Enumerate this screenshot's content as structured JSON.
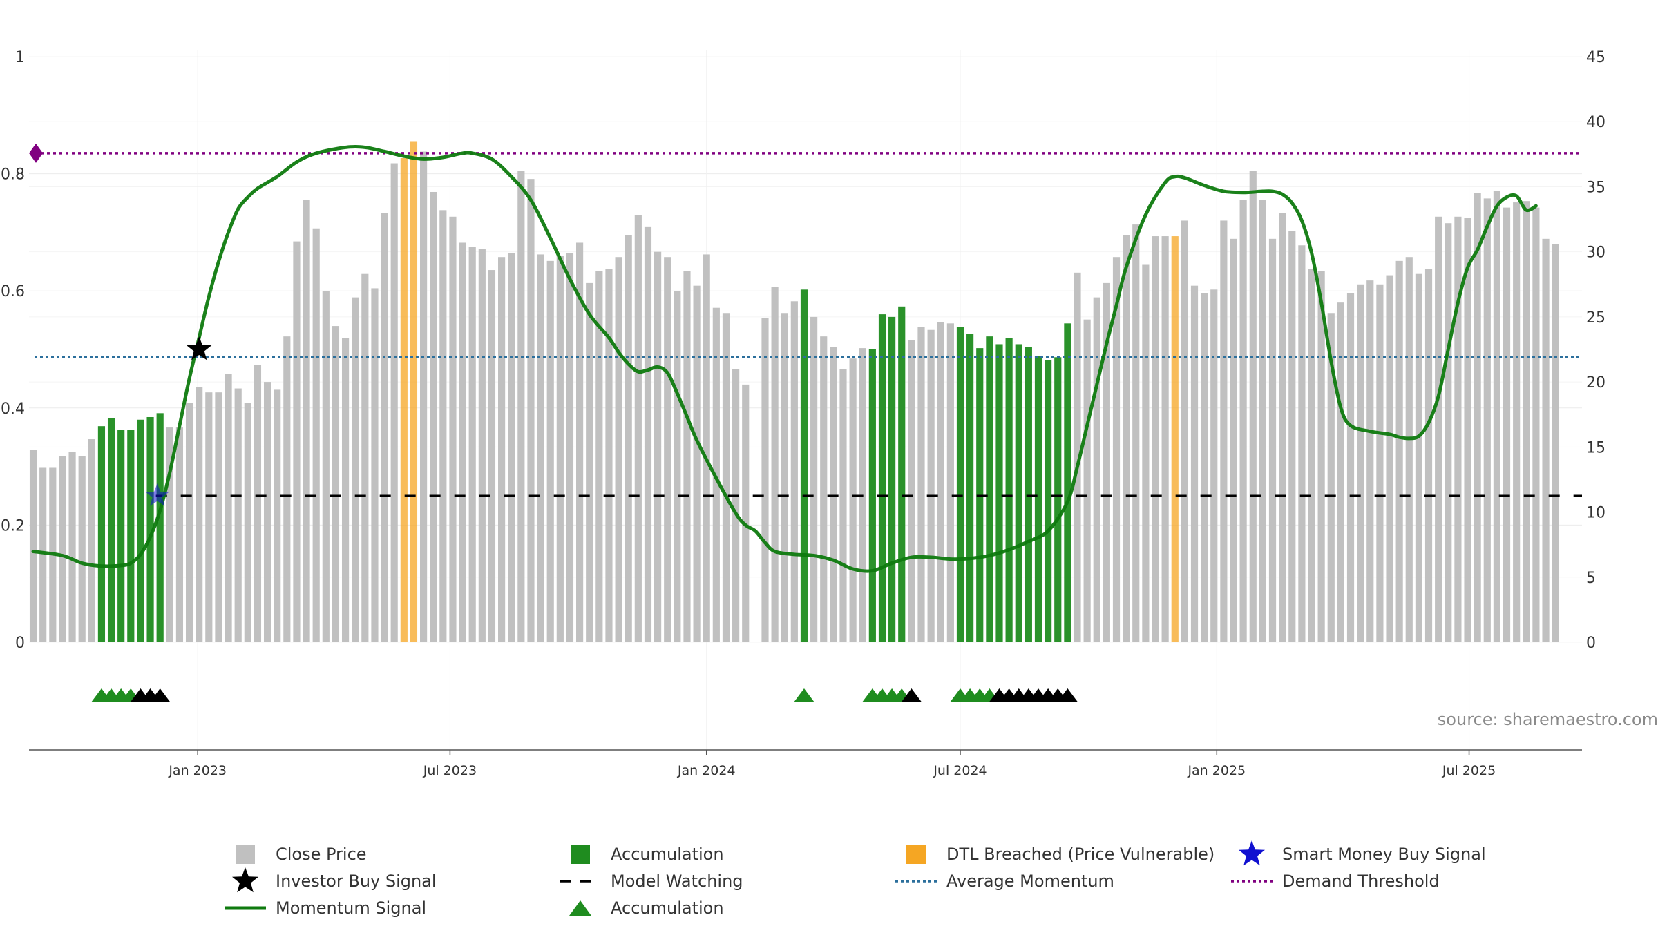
{
  "chart_data": {
    "type": "bar",
    "title": "",
    "source": "source: sharemaestro.com",
    "x_ticks": [
      "Jan 2023",
      "Jul 2023",
      "Jan 2024",
      "Jul 2024",
      "Jan 2025",
      "Jul 2025"
    ],
    "x_range": [
      "2022-09-02",
      "2025-09-20"
    ],
    "y_left": {
      "ticks": [
        "0",
        "0.2",
        "0.4",
        "0.6",
        "0.8",
        "1"
      ],
      "range": [
        0,
        1
      ]
    },
    "y_right": {
      "ticks": [
        "0",
        "5",
        "10",
        "15",
        "20",
        "25",
        "30",
        "35",
        "40",
        "45"
      ],
      "range": [
        0,
        45
      ]
    },
    "bar_interval_days": 7,
    "bars_start_date": "2022-09-02",
    "close_price": [
      14.8,
      13.4,
      13.4,
      14.3,
      14.6,
      14.3,
      15.6,
      16.6,
      17.2,
      16.3,
      16.3,
      17.1,
      17.3,
      17.6,
      16.5,
      16.5,
      18.4,
      19.6,
      19.2,
      19.2,
      20.6,
      19.5,
      18.4,
      21.3,
      20.0,
      19.4,
      23.5,
      30.8,
      34.0,
      31.8,
      27.0,
      24.3,
      23.4,
      26.5,
      28.3,
      27.2,
      33.0,
      36.8,
      37.2,
      38.5,
      37.7,
      34.6,
      33.2,
      32.7,
      30.7,
      30.4,
      30.2,
      28.6,
      29.6,
      29.9,
      36.2,
      35.6,
      29.8,
      29.3,
      29.7,
      29.9,
      30.7,
      27.6,
      28.5,
      28.7,
      29.6,
      31.3,
      32.8,
      31.9,
      30.0,
      29.6,
      27.0,
      28.5,
      27.4,
      29.8,
      25.7,
      25.3,
      21.0,
      19.8,
      0,
      24.9,
      27.3,
      25.3,
      26.2,
      27.1,
      25.0,
      23.5,
      22.7,
      21.0,
      21.8,
      22.6,
      22.5,
      25.2,
      25.0,
      25.8,
      23.2,
      24.2,
      24.0,
      24.6,
      24.5,
      24.2,
      23.7,
      22.6,
      23.5,
      22.9,
      23.4,
      22.9,
      22.7,
      22.0,
      21.7,
      21.9,
      24.5,
      28.4,
      24.8,
      26.5,
      27.6,
      29.6,
      31.3,
      32.1,
      29.0,
      31.2,
      31.2,
      31.2,
      32.4,
      27.4,
      26.8,
      27.1,
      32.4,
      31.0,
      34.0,
      36.2,
      34.0,
      31.0,
      33.0,
      31.6,
      30.5,
      28.7,
      28.5,
      25.3,
      26.1,
      26.8,
      27.5,
      27.8,
      27.5,
      28.2,
      29.3,
      29.6,
      28.3,
      28.7,
      32.7,
      32.2,
      32.7,
      32.6,
      34.5,
      34.1,
      34.7,
      33.4,
      33.8,
      33.9,
      33.4,
      31.0,
      30.6
    ],
    "accumulation_ranges": [
      [
        7,
        13
      ],
      [
        79,
        79
      ],
      [
        86,
        89
      ],
      [
        95,
        106
      ]
    ],
    "dtl_breached_ranges": [
      [
        38,
        39
      ],
      [
        117,
        117
      ]
    ],
    "momentum_signal": [
      [
        0,
        0.155
      ],
      [
        3,
        0.148
      ],
      [
        5,
        0.135
      ],
      [
        7,
        0.13
      ],
      [
        9,
        0.131
      ],
      [
        10,
        0.135
      ],
      [
        11,
        0.15
      ],
      [
        12,
        0.18
      ],
      [
        13,
        0.225
      ],
      [
        14,
        0.29
      ],
      [
        15,
        0.37
      ],
      [
        16,
        0.45
      ],
      [
        17,
        0.52
      ],
      [
        18,
        0.59
      ],
      [
        19,
        0.65
      ],
      [
        20,
        0.7
      ],
      [
        21,
        0.74
      ],
      [
        22,
        0.76
      ],
      [
        23,
        0.775
      ],
      [
        25,
        0.795
      ],
      [
        27,
        0.82
      ],
      [
        29,
        0.835
      ],
      [
        32,
        0.845
      ],
      [
        34,
        0.845
      ],
      [
        36,
        0.838
      ],
      [
        38,
        0.83
      ],
      [
        40,
        0.825
      ],
      [
        42,
        0.828
      ],
      [
        44,
        0.835
      ],
      [
        45,
        0.835
      ],
      [
        47,
        0.825
      ],
      [
        49,
        0.795
      ],
      [
        51,
        0.755
      ],
      [
        53,
        0.69
      ],
      [
        55,
        0.62
      ],
      [
        57,
        0.56
      ],
      [
        59,
        0.52
      ],
      [
        60,
        0.495
      ],
      [
        61,
        0.475
      ],
      [
        62,
        0.462
      ],
      [
        63,
        0.465
      ],
      [
        64,
        0.47
      ],
      [
        65,
        0.46
      ],
      [
        66,
        0.425
      ],
      [
        67,
        0.385
      ],
      [
        68,
        0.345
      ],
      [
        70,
        0.28
      ],
      [
        72,
        0.22
      ],
      [
        73,
        0.2
      ],
      [
        74,
        0.19
      ],
      [
        75,
        0.17
      ],
      [
        76,
        0.155
      ],
      [
        78,
        0.15
      ],
      [
        80,
        0.148
      ],
      [
        82,
        0.14
      ],
      [
        84,
        0.125
      ],
      [
        86,
        0.122
      ],
      [
        88,
        0.135
      ],
      [
        90,
        0.145
      ],
      [
        92,
        0.145
      ],
      [
        94,
        0.142
      ],
      [
        96,
        0.143
      ],
      [
        98,
        0.148
      ],
      [
        100,
        0.158
      ],
      [
        102,
        0.172
      ],
      [
        104,
        0.19
      ],
      [
        106,
        0.24
      ],
      [
        107,
        0.3
      ],
      [
        108,
        0.37
      ],
      [
        109,
        0.44
      ],
      [
        110,
        0.51
      ],
      [
        111,
        0.575
      ],
      [
        112,
        0.64
      ],
      [
        114,
        0.73
      ],
      [
        116,
        0.785
      ],
      [
        117,
        0.795
      ],
      [
        118,
        0.793
      ],
      [
        120,
        0.78
      ],
      [
        122,
        0.77
      ],
      [
        124,
        0.768
      ],
      [
        126,
        0.77
      ],
      [
        127,
        0.77
      ],
      [
        128,
        0.765
      ],
      [
        129,
        0.75
      ],
      [
        130,
        0.72
      ],
      [
        131,
        0.665
      ],
      [
        132,
        0.58
      ],
      [
        133,
        0.48
      ],
      [
        134,
        0.4
      ],
      [
        135,
        0.37
      ],
      [
        137,
        0.36
      ],
      [
        139,
        0.355
      ],
      [
        140,
        0.35
      ],
      [
        141,
        0.348
      ],
      [
        142,
        0.352
      ],
      [
        143,
        0.375
      ],
      [
        144,
        0.42
      ],
      [
        145,
        0.5
      ],
      [
        146,
        0.58
      ],
      [
        147,
        0.64
      ],
      [
        148,
        0.67
      ],
      [
        149,
        0.71
      ],
      [
        150,
        0.745
      ],
      [
        151,
        0.76
      ],
      [
        152,
        0.762
      ],
      [
        153,
        0.738
      ],
      [
        154,
        0.745
      ]
    ],
    "model_watching_start_index": 13,
    "model_watching_level": 0.25,
    "average_momentum": 0.487,
    "demand_threshold": 0.835,
    "investor_buy_signal": [
      {
        "index": 17,
        "value": 0.5
      }
    ],
    "smart_money_buy_signal": [
      {
        "index": 13,
        "value": 0.25
      }
    ],
    "accumulation_triangles_green": [
      7,
      8,
      9,
      10,
      79,
      86,
      87,
      88,
      89,
      95,
      96,
      97,
      98
    ],
    "accumulation_triangles_black": [
      11,
      12,
      13,
      90,
      99,
      100,
      101,
      102,
      103,
      104,
      105,
      106
    ],
    "legend": [
      {
        "label": "Close Price",
        "symbol": "square",
        "color": "#bdbdbd"
      },
      {
        "label": "Accumulation",
        "symbol": "square",
        "color": "#1f8c1f"
      },
      {
        "label": "DTL Breached (Price Vulnerable)",
        "symbol": "square",
        "color": "#f5a623"
      },
      {
        "label": "Smart Money Buy Signal",
        "symbol": "star",
        "color": "#1010d0"
      },
      {
        "label": "Investor Buy Signal",
        "symbol": "star",
        "color": "#000000"
      },
      {
        "label": "Model Watching",
        "symbol": "dash",
        "color": "#000000"
      },
      {
        "label": "Average Momentum",
        "symbol": "dot",
        "color": "#2b6f9c"
      },
      {
        "label": "Demand Threshold",
        "symbol": "dot",
        "color": "#800080"
      },
      {
        "label": "Momentum Signal",
        "symbol": "line",
        "color": "#0e7a0e"
      },
      {
        "label": "Accumulation",
        "symbol": "triangle",
        "color": "#1f8c1f"
      }
    ],
    "colors": {
      "close_price": "#bdbdbd",
      "accumulation": "#1f8c1f",
      "dtl_breached": "#f5a623",
      "momentum": "#0e7a0e",
      "average_momentum": "#2b6f9c",
      "demand_threshold": "#800080",
      "model_watching": "#000000",
      "smart_money": "#1010d0",
      "investor": "#000000",
      "triangle_black": "#000000"
    }
  }
}
